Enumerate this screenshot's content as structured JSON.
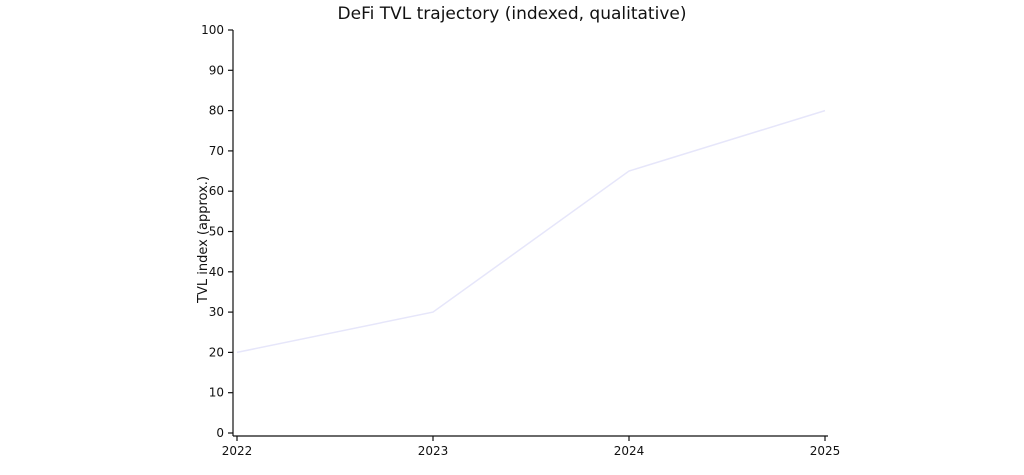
{
  "chart_data": {
    "type": "line",
    "title": "DeFi TVL trajectory (indexed, qualitative)",
    "xlabel": "",
    "ylabel": "TVL index (approx.)",
    "x": [
      "2022",
      "2023",
      "2024",
      "2025"
    ],
    "series": [
      {
        "values": [
          20,
          30,
          65,
          80
        ],
        "color": "#e6e6fa"
      }
    ],
    "ylim": [
      0,
      100
    ],
    "yticks": [
      0,
      10,
      20,
      30,
      40,
      50,
      60,
      70,
      80,
      90,
      100
    ],
    "grid": false,
    "legend": "none"
  }
}
